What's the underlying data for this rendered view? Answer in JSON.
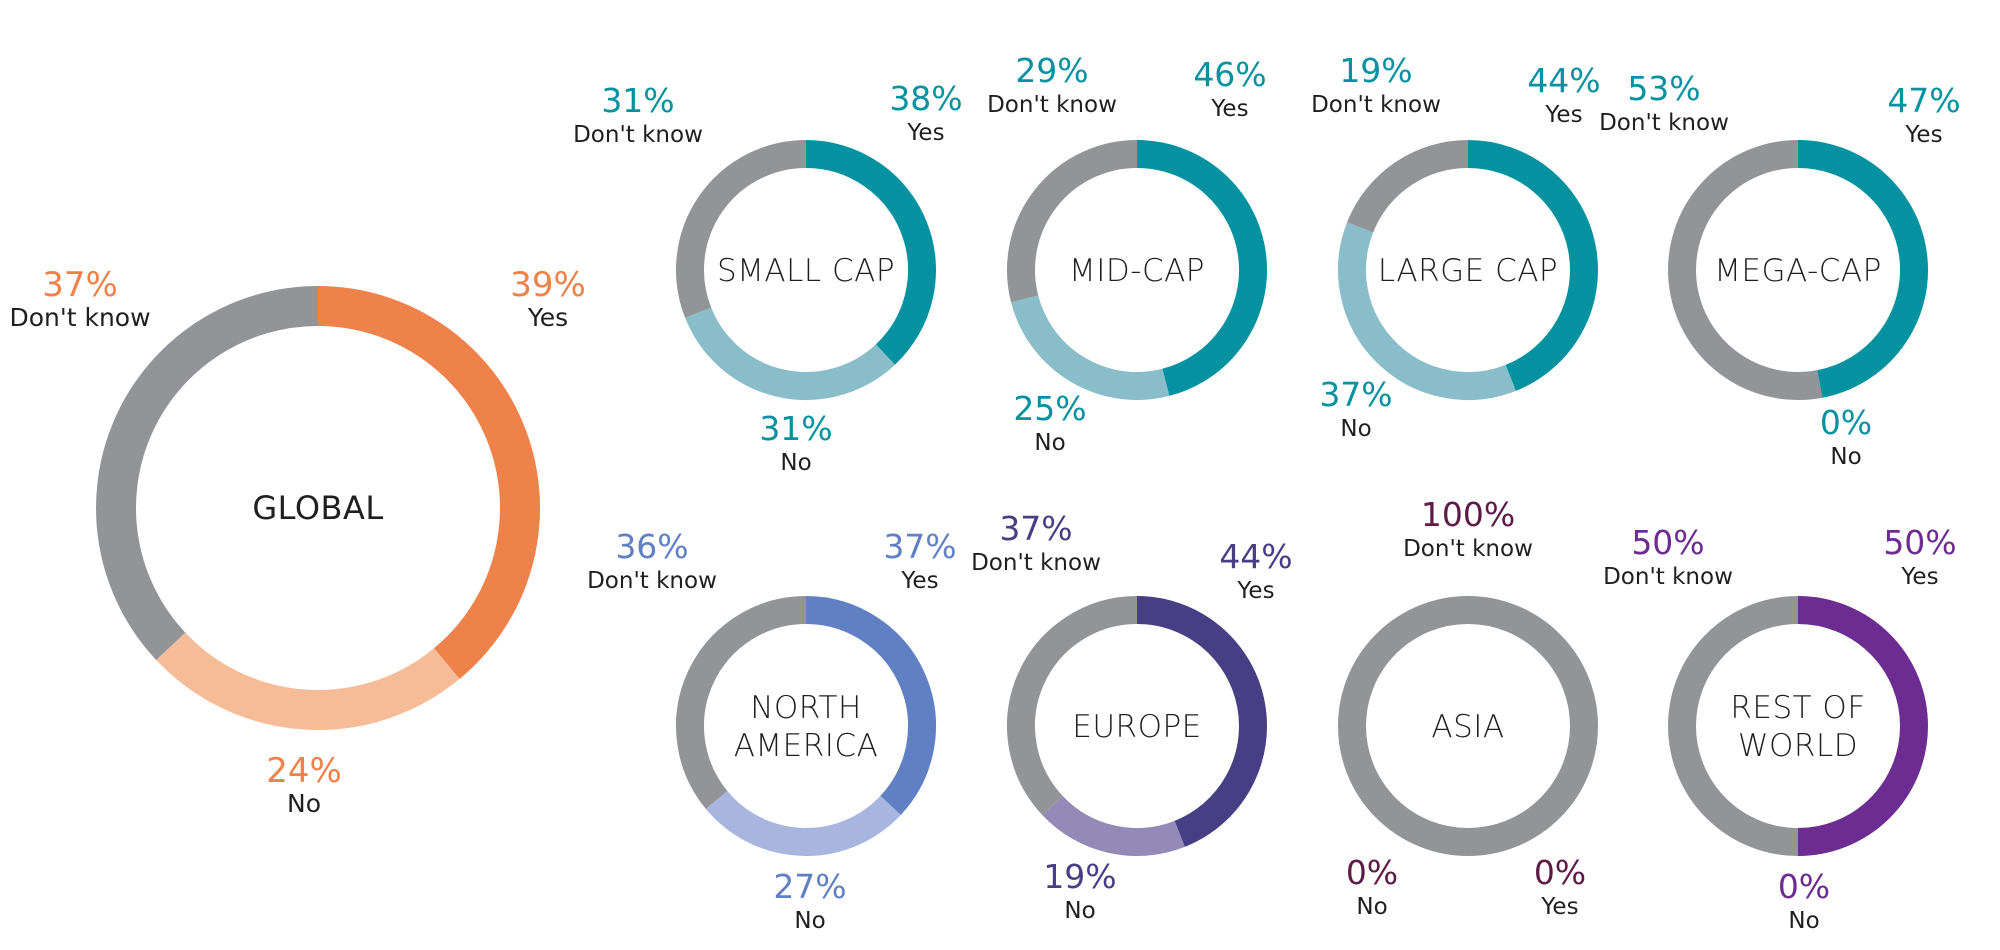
{
  "chart_data": [
    {
      "type": "pie",
      "title": "GLOBAL",
      "categories": [
        "Yes",
        "No",
        "Don't know"
      ],
      "values": [
        39,
        24,
        37
      ],
      "value_labels": [
        "39%",
        "24%",
        "37%"
      ],
      "colors": [
        "#EE824A",
        "#F6BC98",
        "#929497"
      ],
      "label_color": "#EE824A"
    },
    {
      "type": "pie",
      "title": "SMALL CAP",
      "categories": [
        "Yes",
        "No",
        "Don't know"
      ],
      "values": [
        38,
        31,
        31
      ],
      "value_labels": [
        "38%",
        "31%",
        "31%"
      ],
      "colors": [
        "#0592A0",
        "#89BDCA",
        "#929497"
      ],
      "label_color": "#0592A0"
    },
    {
      "type": "pie",
      "title": "MID-CAP",
      "categories": [
        "Yes",
        "No",
        "Don't know"
      ],
      "values": [
        46,
        25,
        29
      ],
      "value_labels": [
        "46%",
        "25%",
        "29%"
      ],
      "colors": [
        "#0592A0",
        "#89BDCA",
        "#929497"
      ],
      "label_color": "#0592A0"
    },
    {
      "type": "pie",
      "title": "LARGE CAP",
      "categories": [
        "Yes",
        "No",
        "Don't know"
      ],
      "values": [
        44,
        37,
        19
      ],
      "value_labels": [
        "44%",
        "37%",
        "19%"
      ],
      "colors": [
        "#0592A0",
        "#89BDCA",
        "#929497"
      ],
      "label_color": "#0592A0"
    },
    {
      "type": "pie",
      "title": "MEGA-CAP",
      "categories": [
        "Yes",
        "No",
        "Don't know"
      ],
      "values": [
        47,
        0,
        53
      ],
      "value_labels": [
        "47%",
        "0%",
        "53%"
      ],
      "colors": [
        "#0592A0",
        "#89BDCA",
        "#929497"
      ],
      "label_color": "#0592A0"
    },
    {
      "type": "pie",
      "title": "NORTH AMERICA",
      "title_lines": [
        "NORTH",
        "AMERICA"
      ],
      "categories": [
        "Yes",
        "No",
        "Don't know"
      ],
      "values": [
        37,
        27,
        36
      ],
      "value_labels": [
        "37%",
        "27%",
        "36%"
      ],
      "colors": [
        "#6180C4",
        "#A7B5DF",
        "#929497"
      ],
      "label_color": "#6180C4"
    },
    {
      "type": "pie",
      "title": "EUROPE",
      "categories": [
        "Yes",
        "No",
        "Don't know"
      ],
      "values": [
        44,
        19,
        37
      ],
      "value_labels": [
        "44%",
        "19%",
        "37%"
      ],
      "colors": [
        "#463F83",
        "#948AB7",
        "#929497"
      ],
      "label_color": "#463F83"
    },
    {
      "type": "pie",
      "title": "ASIA",
      "categories": [
        "Yes",
        "No",
        "Don't know"
      ],
      "values": [
        0,
        0,
        100
      ],
      "value_labels": [
        "0%",
        "0%",
        "100%"
      ],
      "colors": [
        "#5E1A46",
        "#A98AA0",
        "#929497"
      ],
      "label_color": "#5E1A46"
    },
    {
      "type": "pie",
      "title": "REST OF WORLD",
      "title_lines": [
        "REST OF",
        "WORLD"
      ],
      "categories": [
        "Yes",
        "No",
        "Don't know"
      ],
      "values": [
        50,
        0,
        50
      ],
      "value_labels": [
        "50%",
        "0%",
        "50%"
      ],
      "colors": [
        "#6C2C91",
        "#B79BC9",
        "#929497"
      ],
      "label_color": "#6C2C91"
    }
  ]
}
